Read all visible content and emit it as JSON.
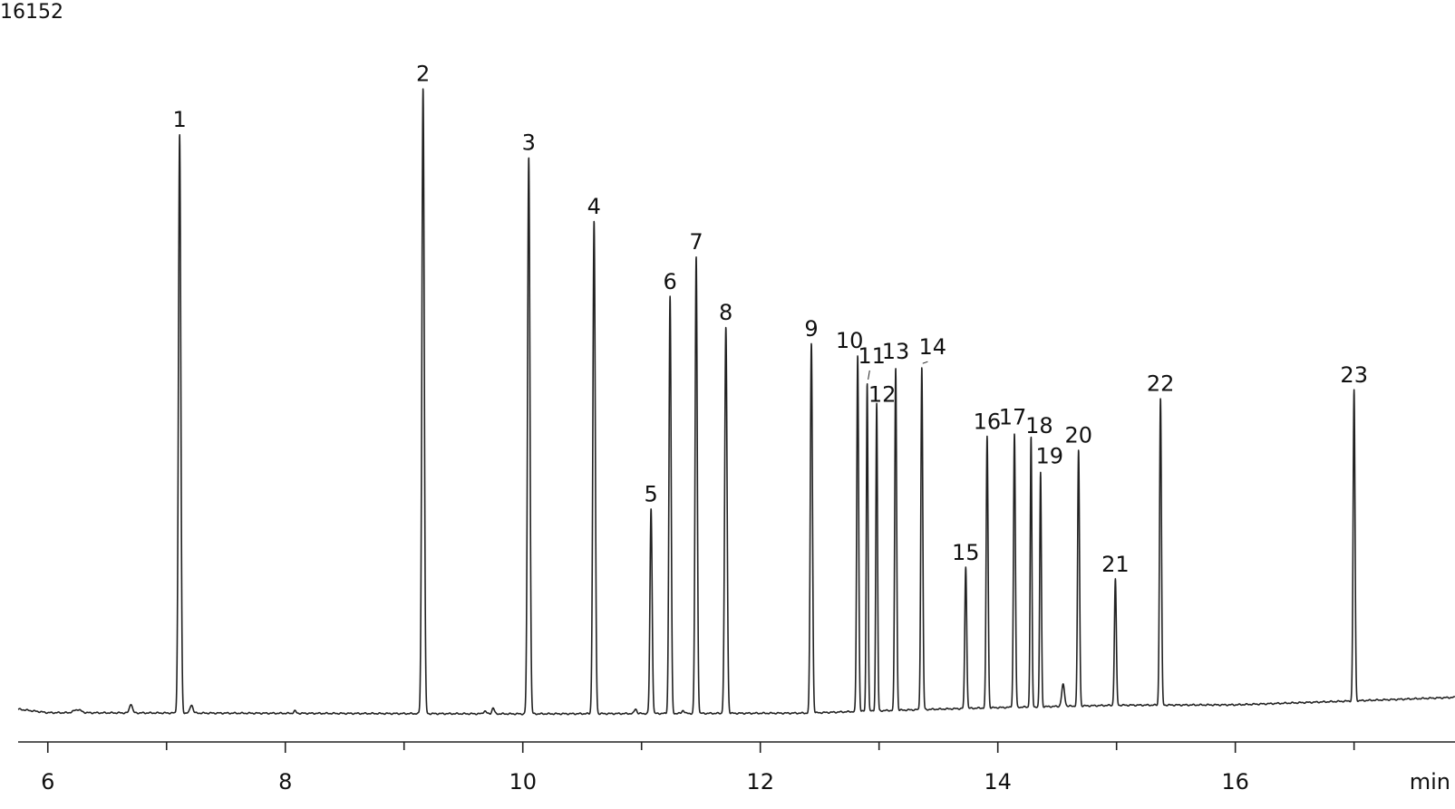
{
  "chart_data": {
    "type": "line",
    "title": "",
    "ylabel_top": "16152",
    "xlabel": "min",
    "xlim": [
      5.75,
      17.85
    ],
    "ylim": [
      0,
      16152
    ],
    "grid": false,
    "x_ticks": [
      {
        "value": 6,
        "label": "6"
      },
      {
        "value": 8,
        "label": "8"
      },
      {
        "value": 10,
        "label": "10"
      },
      {
        "value": 12,
        "label": "12"
      },
      {
        "value": 14,
        "label": "14"
      },
      {
        "value": 16,
        "label": "16"
      }
    ],
    "x_minor_ticks": [
      7,
      9,
      11,
      13,
      15,
      17
    ],
    "peaks": [
      {
        "label": "1",
        "x": 7.11,
        "y": 14700,
        "sigma": 0.01
      },
      {
        "label": "2",
        "x": 9.16,
        "y": 15900,
        "sigma": 0.01
      },
      {
        "label": "3",
        "x": 10.05,
        "y": 14150,
        "sigma": 0.01
      },
      {
        "label": "4",
        "x": 10.6,
        "y": 12500,
        "sigma": 0.01
      },
      {
        "label": "5",
        "x": 11.08,
        "y": 5200,
        "sigma": 0.009
      },
      {
        "label": "6",
        "x": 11.24,
        "y": 10600,
        "sigma": 0.009
      },
      {
        "label": "7",
        "x": 11.46,
        "y": 11600,
        "sigma": 0.009
      },
      {
        "label": "8",
        "x": 11.71,
        "y": 9800,
        "sigma": 0.01
      },
      {
        "label": "9",
        "x": 12.43,
        "y": 9400,
        "sigma": 0.009
      },
      {
        "label": "10",
        "x": 12.82,
        "y": 9050,
        "sigma": 0.008
      },
      {
        "label": "11",
        "x": 12.9,
        "y": 8350,
        "sigma": 0.007
      },
      {
        "label": "12",
        "x": 12.98,
        "y": 7800,
        "sigma": 0.007
      },
      {
        "label": "13",
        "x": 13.14,
        "y": 8700,
        "sigma": 0.008
      },
      {
        "label": "14",
        "x": 13.36,
        "y": 8700,
        "sigma": 0.008
      },
      {
        "label": "15",
        "x": 13.73,
        "y": 3600,
        "sigma": 0.008
      },
      {
        "label": "16",
        "x": 13.91,
        "y": 6900,
        "sigma": 0.008
      },
      {
        "label": "17",
        "x": 14.14,
        "y": 6950,
        "sigma": 0.008
      },
      {
        "label": "18",
        "x": 14.28,
        "y": 6850,
        "sigma": 0.007
      },
      {
        "label": "19",
        "x": 14.36,
        "y": 5950,
        "sigma": 0.007
      },
      {
        "label": "20",
        "x": 14.68,
        "y": 6500,
        "sigma": 0.008
      },
      {
        "label": "21",
        "x": 14.99,
        "y": 3200,
        "sigma": 0.008
      },
      {
        "label": "22",
        "x": 15.37,
        "y": 7800,
        "sigma": 0.008
      },
      {
        "label": "23",
        "x": 17.0,
        "y": 7900,
        "sigma": 0.008
      }
    ],
    "minor_peaks": [
      {
        "x": 6.7,
        "y": 230,
        "sigma": 0.012
      },
      {
        "x": 7.21,
        "y": 210,
        "sigma": 0.012
      },
      {
        "x": 6.25,
        "y": 80,
        "sigma": 0.03
      },
      {
        "x": 9.75,
        "y": 150,
        "sigma": 0.01
      },
      {
        "x": 9.68,
        "y": 70,
        "sigma": 0.012
      },
      {
        "x": 10.95,
        "y": 120,
        "sigma": 0.01
      },
      {
        "x": 8.08,
        "y": 60,
        "sigma": 0.01
      },
      {
        "x": 14.55,
        "y": 550,
        "sigma": 0.012
      },
      {
        "x": 11.35,
        "y": 80,
        "sigma": 0.01
      }
    ],
    "baseline": [
      {
        "x": 5.75,
        "y": 120
      },
      {
        "x": 6.0,
        "y": 30
      },
      {
        "x": 10.0,
        "y": 0
      },
      {
        "x": 12.4,
        "y": 20
      },
      {
        "x": 13.0,
        "y": 80
      },
      {
        "x": 14.0,
        "y": 160
      },
      {
        "x": 15.0,
        "y": 220
      },
      {
        "x": 16.0,
        "y": 230
      },
      {
        "x": 17.0,
        "y": 330
      },
      {
        "x": 17.85,
        "y": 420
      }
    ]
  }
}
